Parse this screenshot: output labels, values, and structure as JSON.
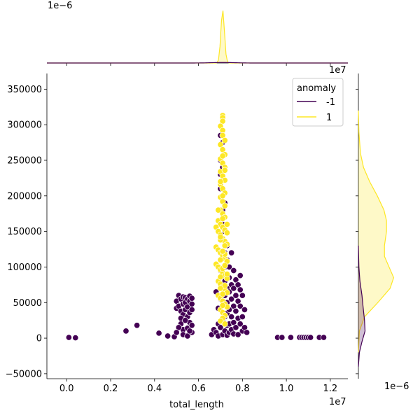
{
  "chart_data": {
    "type": "scatter",
    "subtype": "jointplot-with-kde-marginals",
    "xlabel": "total_length",
    "ylabel": "",
    "x_scale_label": "1e7",
    "y_scale_label": "",
    "top_marginal_scale_label": "1e−6",
    "right_marginal_scale_label": "1e−6",
    "x_axis_offset_label": "1e7",
    "xlim": [
      -0.09,
      1.28
    ],
    "ylim": [
      -57000,
      372000
    ],
    "x_ticks": [
      0.0,
      0.2,
      0.4,
      0.6,
      0.8,
      1.0,
      1.2
    ],
    "x_tick_labels": [
      "0.0",
      "0.2",
      "0.4",
      "0.6",
      "0.8",
      "1.0",
      "1.2"
    ],
    "y_ticks": [
      -50000,
      0,
      50000,
      100000,
      150000,
      200000,
      250000,
      300000,
      350000
    ],
    "y_tick_labels": [
      "−50000",
      "0",
      "50000",
      "100000",
      "150000",
      "200000",
      "250000",
      "300000",
      "350000"
    ],
    "grid": false,
    "legend": {
      "title": "anomaly",
      "placement": "top-right",
      "entries": [
        {
          "label": "-1",
          "color": "#440154"
        },
        {
          "label": "1",
          "color": "#fde725"
        }
      ]
    },
    "series": [
      {
        "name": "-1",
        "color": "#440154",
        "points": [
          [
            0.01,
            1000
          ],
          [
            0.04,
            500
          ],
          [
            0.27,
            10000
          ],
          [
            0.32,
            18000
          ],
          [
            0.42,
            7000
          ],
          [
            0.46,
            3000
          ],
          [
            0.49,
            2000
          ],
          [
            0.5,
            42000
          ],
          [
            0.5,
            52000
          ],
          [
            0.51,
            60000
          ],
          [
            0.51,
            45000
          ],
          [
            0.52,
            55000
          ],
          [
            0.52,
            38000
          ],
          [
            0.52,
            20000
          ],
          [
            0.53,
            58000
          ],
          [
            0.53,
            48000
          ],
          [
            0.53,
            33000
          ],
          [
            0.53,
            12000
          ],
          [
            0.53,
            5000
          ],
          [
            0.54,
            57000
          ],
          [
            0.54,
            50000
          ],
          [
            0.54,
            40000
          ],
          [
            0.55,
            55000
          ],
          [
            0.55,
            44000
          ],
          [
            0.55,
            30000
          ],
          [
            0.55,
            14000
          ],
          [
            0.55,
            3000
          ],
          [
            0.56,
            59000
          ],
          [
            0.56,
            52000
          ],
          [
            0.56,
            36000
          ],
          [
            0.56,
            22000
          ],
          [
            0.57,
            48000
          ],
          [
            0.57,
            56000
          ],
          [
            0.57,
            40000
          ],
          [
            0.57,
            8000
          ],
          [
            0.51,
            15000
          ],
          [
            0.52,
            28000
          ],
          [
            0.54,
            25000
          ],
          [
            0.56,
            10000
          ],
          [
            0.57,
            18000
          ],
          [
            0.5,
            8000
          ],
          [
            0.66,
            5000
          ],
          [
            0.67,
            12000
          ],
          [
            0.68,
            8000
          ],
          [
            0.69,
            20000
          ],
          [
            0.69,
            3000
          ],
          [
            0.7,
            285000
          ],
          [
            0.7,
            250000
          ],
          [
            0.7,
            230000
          ],
          [
            0.7,
            210000
          ],
          [
            0.7,
            15000
          ],
          [
            0.71,
            240000
          ],
          [
            0.71,
            275000
          ],
          [
            0.71,
            200000
          ],
          [
            0.71,
            180000
          ],
          [
            0.71,
            160000
          ],
          [
            0.71,
            140000
          ],
          [
            0.71,
            25000
          ],
          [
            0.71,
            5000
          ],
          [
            0.72,
            190000
          ],
          [
            0.72,
            170000
          ],
          [
            0.72,
            150000
          ],
          [
            0.72,
            120000
          ],
          [
            0.72,
            100000
          ],
          [
            0.72,
            80000
          ],
          [
            0.72,
            60000
          ],
          [
            0.72,
            30000
          ],
          [
            0.72,
            10000
          ],
          [
            0.73,
            130000
          ],
          [
            0.73,
            110000
          ],
          [
            0.73,
            90000
          ],
          [
            0.73,
            70000
          ],
          [
            0.73,
            50000
          ],
          [
            0.73,
            35000
          ],
          [
            0.73,
            18000
          ],
          [
            0.73,
            4000
          ],
          [
            0.74,
            100000
          ],
          [
            0.74,
            85000
          ],
          [
            0.74,
            65000
          ],
          [
            0.74,
            40000
          ],
          [
            0.74,
            20000
          ],
          [
            0.74,
            8000
          ],
          [
            0.75,
            120000
          ],
          [
            0.75,
            75000
          ],
          [
            0.75,
            55000
          ],
          [
            0.75,
            30000
          ],
          [
            0.75,
            12000
          ],
          [
            0.76,
            95000
          ],
          [
            0.76,
            70000
          ],
          [
            0.76,
            45000
          ],
          [
            0.76,
            22000
          ],
          [
            0.76,
            6000
          ],
          [
            0.77,
            82000
          ],
          [
            0.77,
            60000
          ],
          [
            0.77,
            38000
          ],
          [
            0.77,
            15000
          ],
          [
            0.78,
            75000
          ],
          [
            0.78,
            52000
          ],
          [
            0.78,
            28000
          ],
          [
            0.78,
            5000
          ],
          [
            0.79,
            88000
          ],
          [
            0.79,
            68000
          ],
          [
            0.79,
            45000
          ],
          [
            0.79,
            20000
          ],
          [
            0.8,
            60000
          ],
          [
            0.8,
            30000
          ],
          [
            0.8,
            10000
          ],
          [
            0.81,
            40000
          ],
          [
            0.81,
            15000
          ],
          [
            0.82,
            8000
          ],
          [
            0.68,
            65000
          ],
          [
            0.69,
            42000
          ],
          [
            0.7,
            55000
          ],
          [
            0.7,
            95000
          ],
          [
            0.96,
            1000
          ],
          [
            0.98,
            1000
          ],
          [
            1.02,
            1000
          ],
          [
            1.06,
            1000
          ],
          [
            1.07,
            1000
          ],
          [
            1.08,
            1000
          ],
          [
            1.09,
            1000
          ],
          [
            1.1,
            1000
          ],
          [
            1.11,
            1000
          ],
          [
            1.15,
            1000
          ],
          [
            1.17,
            1000
          ]
        ]
      },
      {
        "name": "1",
        "color": "#fde725",
        "points": [
          [
            0.71,
            313000
          ],
          [
            0.71,
            310000
          ],
          [
            0.71,
            305000
          ],
          [
            0.7,
            298000
          ],
          [
            0.71,
            292000
          ],
          [
            0.71,
            285000
          ],
          [
            0.72,
            278000
          ],
          [
            0.7,
            272000
          ],
          [
            0.71,
            265000
          ],
          [
            0.72,
            258000
          ],
          [
            0.7,
            252000
          ],
          [
            0.71,
            246000
          ],
          [
            0.72,
            240000
          ],
          [
            0.7,
            234000
          ],
          [
            0.71,
            228000
          ],
          [
            0.72,
            222000
          ],
          [
            0.7,
            216000
          ],
          [
            0.71,
            210000
          ],
          [
            0.72,
            204000
          ],
          [
            0.7,
            198000
          ],
          [
            0.71,
            192000
          ],
          [
            0.72,
            186000
          ],
          [
            0.7,
            180000
          ],
          [
            0.71,
            175000
          ],
          [
            0.72,
            170000
          ],
          [
            0.69,
            165000
          ],
          [
            0.7,
            160000
          ],
          [
            0.71,
            156000
          ],
          [
            0.72,
            152000
          ],
          [
            0.73,
            148000
          ],
          [
            0.68,
            156000
          ],
          [
            0.69,
            150000
          ],
          [
            0.7,
            145000
          ],
          [
            0.71,
            140000
          ],
          [
            0.72,
            136000
          ],
          [
            0.73,
            132000
          ],
          [
            0.68,
            128000
          ],
          [
            0.69,
            124000
          ],
          [
            0.7,
            120000
          ],
          [
            0.71,
            116000
          ],
          [
            0.72,
            112000
          ],
          [
            0.73,
            108000
          ],
          [
            0.68,
            104000
          ],
          [
            0.69,
            100000
          ],
          [
            0.7,
            96000
          ],
          [
            0.71,
            92000
          ],
          [
            0.72,
            88000
          ],
          [
            0.73,
            84000
          ],
          [
            0.69,
            80000
          ],
          [
            0.7,
            76000
          ],
          [
            0.71,
            72000
          ],
          [
            0.72,
            68000
          ],
          [
            0.73,
            64000
          ],
          [
            0.69,
            60000
          ],
          [
            0.7,
            56000
          ],
          [
            0.71,
            52000
          ],
          [
            0.72,
            48000
          ],
          [
            0.73,
            44000
          ],
          [
            0.7,
            40000
          ],
          [
            0.71,
            36000
          ],
          [
            0.72,
            32000
          ],
          [
            0.71,
            28000
          ],
          [
            0.7,
            24000
          ],
          [
            0.72,
            20000
          ],
          [
            0.71,
            168000
          ],
          [
            0.7,
            138000
          ],
          [
            0.72,
            118000
          ],
          [
            0.71,
            98000
          ],
          [
            0.7,
            86000
          ],
          [
            0.72,
            74000
          ],
          [
            0.71,
            62000
          ],
          [
            0.7,
            110000
          ],
          [
            0.72,
            130000
          ],
          [
            0.73,
            160000
          ],
          [
            0.69,
            180000
          ],
          [
            0.71,
            200000
          ],
          [
            0.7,
            220000
          ],
          [
            0.72,
            236000
          ],
          [
            0.71,
            256000
          ],
          [
            0.7,
            142000
          ],
          [
            0.71,
            122000
          ],
          [
            0.72,
            102000
          ],
          [
            0.7,
            70000
          ],
          [
            0.73,
            90000
          ],
          [
            0.71,
            46000
          ]
        ]
      }
    ],
    "marginals": {
      "top": {
        "series": [
          {
            "name": "1",
            "color": "#fde725",
            "peak_x": 0.71,
            "peak_density": 1.0
          },
          {
            "name": "-1",
            "color": "#440154",
            "peak_x": 0.71,
            "peak_density": 0.01
          }
        ]
      },
      "right": {
        "series": [
          {
            "name": "1",
            "color": "#fde725",
            "kde": [
              [
                -20000,
                0.0
              ],
              [
                10000,
                0.02
              ],
              [
                30000,
                0.12
              ],
              [
                50000,
                0.38
              ],
              [
                70000,
                0.62
              ],
              [
                85000,
                0.69
              ],
              [
                100000,
                0.6
              ],
              [
                115000,
                0.51
              ],
              [
                130000,
                0.51
              ],
              [
                150000,
                0.55
              ],
              [
                165000,
                0.55
              ],
              [
                180000,
                0.5
              ],
              [
                200000,
                0.37
              ],
              [
                220000,
                0.22
              ],
              [
                240000,
                0.1
              ],
              [
                260000,
                0.04
              ],
              [
                290000,
                0.01
              ],
              [
                320000,
                0.0
              ]
            ]
          },
          {
            "name": "-1",
            "color": "#440154",
            "kde": [
              [
                -40000,
                0.0
              ],
              [
                -20000,
                0.02
              ],
              [
                -5000,
                0.07
              ],
              [
                10000,
                0.13
              ],
              [
                25000,
                0.12
              ],
              [
                45000,
                0.09
              ],
              [
                60000,
                0.07
              ],
              [
                80000,
                0.03
              ],
              [
                100000,
                0.01
              ],
              [
                130000,
                0.0
              ]
            ]
          }
        ]
      }
    }
  }
}
